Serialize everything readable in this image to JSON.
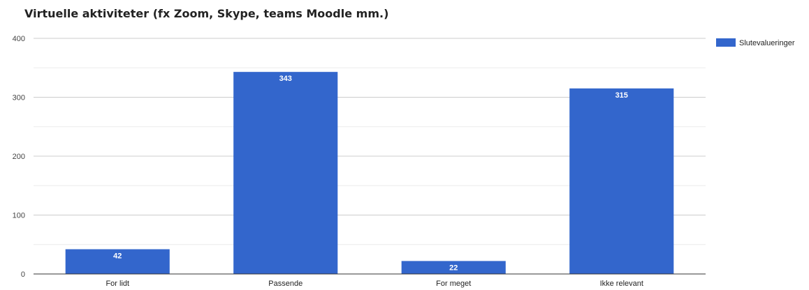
{
  "chart_data": {
    "type": "bar",
    "title": "Virtuelle aktiviteter (fx Zoom, Skype, teams Moodle mm.)",
    "xlabel": "",
    "ylabel": "",
    "categories": [
      "For lidt",
      "Passende",
      "For meget",
      "Ikke relevant"
    ],
    "series": [
      {
        "name": "Slutevalueringer",
        "values": [
          42,
          343,
          22,
          315
        ],
        "color": "#3366cc"
      }
    ],
    "ylim": [
      0,
      400
    ],
    "yticks": [
      0,
      100,
      200,
      300,
      400
    ],
    "grid": true,
    "minor_grid": true,
    "data_labels": true,
    "legend_position": "right"
  }
}
